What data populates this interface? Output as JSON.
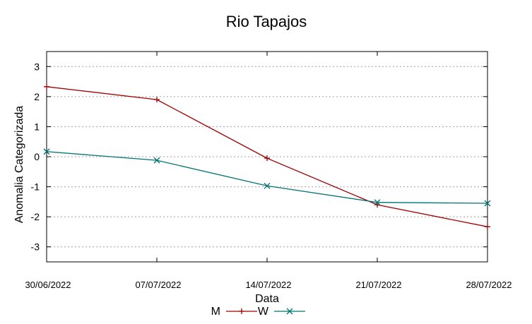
{
  "chart_data": {
    "type": "line",
    "title": "Rio Tapajos",
    "xlabel": "Data",
    "ylabel": "Anomalia Categorizada",
    "categories": [
      "30/06/2022",
      "07/07/2022",
      "14/07/2022",
      "21/07/2022",
      "28/07/2022"
    ],
    "yticks": [
      3,
      2,
      1,
      0,
      -1,
      -2,
      -3
    ],
    "ylim": [
      -3.5,
      3.5
    ],
    "grid": true,
    "legend_position": "bottom-center",
    "series": [
      {
        "name": "M",
        "color": "#a00000",
        "marker": "plus",
        "values": [
          2.33,
          1.9,
          -0.05,
          -1.6,
          -2.33
        ]
      },
      {
        "name": "W",
        "color": "#007373",
        "marker": "cross",
        "values": [
          0.17,
          -0.12,
          -0.97,
          -1.52,
          -1.55
        ]
      }
    ]
  }
}
